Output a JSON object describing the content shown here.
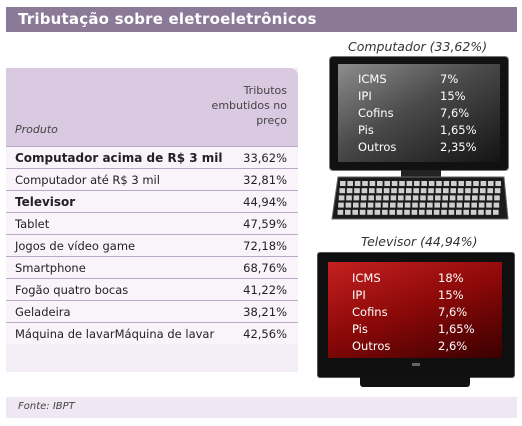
{
  "title": "Tributação sobre eletroeletrônicos",
  "table": {
    "header_product": "Produto",
    "header_tributes": "Tributos embutidos no preço",
    "rows": [
      {
        "name": "Computador acima de R$ 3 mil",
        "value": "33,62%",
        "bold": true
      },
      {
        "name": "Computador até R$ 3 mil",
        "value": "32,81%",
        "bold": false
      },
      {
        "name": "Televisor",
        "value": "44,94%",
        "bold": true
      },
      {
        "name": "Tablet",
        "value": "47,59%",
        "bold": false
      },
      {
        "name": "Jogos de vídeo game",
        "value": "72,18%",
        "bold": false
      },
      {
        "name": "Smartphone",
        "value": "68,76%",
        "bold": false
      },
      {
        "name": "Fogão quatro bocas",
        "value": "41,22%",
        "bold": false
      },
      {
        "name": "Geladeira",
        "value": "38,21%",
        "bold": false
      },
      {
        "name": "Máquina de lavarMáquina de lavar",
        "value": "42,56%",
        "bold": false
      }
    ]
  },
  "computer": {
    "caption": "Computador (33,62%)",
    "taxes": [
      {
        "name": "ICMS",
        "value": "7%"
      },
      {
        "name": "IPI",
        "value": "15%"
      },
      {
        "name": "Cofins",
        "value": "7,6%"
      },
      {
        "name": "Pis",
        "value": "1,65%"
      },
      {
        "name": "Outros",
        "value": "2,35%"
      }
    ]
  },
  "tv": {
    "caption": "Televisor  (44,94%)",
    "taxes": [
      {
        "name": "ICMS",
        "value": "18%"
      },
      {
        "name": "IPI",
        "value": "15%"
      },
      {
        "name": "Cofins",
        "value": "7,6%"
      },
      {
        "name": "Pis",
        "value": "1,65%"
      },
      {
        "name": "Outros",
        "value": "2,6%"
      }
    ]
  },
  "source": "Fonte: IBPT",
  "colors": {
    "title_bar": "#8a7a98",
    "table_header": "#d9c9e1",
    "tv_screen": "#b01616"
  }
}
